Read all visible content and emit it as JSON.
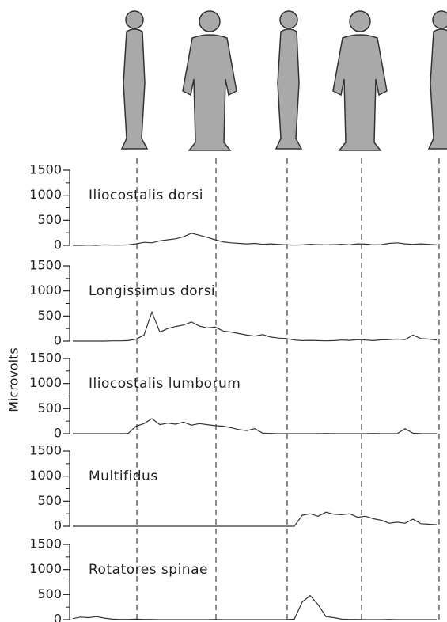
{
  "y_label": "Microvolts",
  "chart_data": [
    {
      "type": "line",
      "title": "Iliocostalis dorsi",
      "color": "#333333",
      "ylim": [
        0,
        1500
      ],
      "yticks": [
        0,
        500,
        1000,
        1500
      ],
      "values": [
        0,
        0,
        5,
        0,
        10,
        5,
        5,
        10,
        30,
        60,
        50,
        90,
        110,
        130,
        170,
        240,
        200,
        160,
        110,
        70,
        50,
        40,
        30,
        40,
        20,
        30,
        20,
        10,
        5,
        10,
        20,
        15,
        10,
        15,
        20,
        10,
        30,
        25,
        10,
        15,
        40,
        50,
        30,
        20,
        30,
        20,
        10
      ]
    },
    {
      "type": "line",
      "title": "Longissimus dorsi",
      "color": "#333333",
      "ylim": [
        0,
        1500
      ],
      "yticks": [
        0,
        500,
        1000,
        1500
      ],
      "values": [
        0,
        0,
        0,
        0,
        0,
        5,
        5,
        10,
        40,
        120,
        580,
        180,
        250,
        290,
        320,
        380,
        300,
        260,
        280,
        200,
        180,
        150,
        120,
        100,
        130,
        80,
        60,
        50,
        20,
        10,
        15,
        10,
        5,
        10,
        20,
        15,
        30,
        20,
        10,
        25,
        30,
        40,
        30,
        120,
        50,
        40,
        20
      ]
    },
    {
      "type": "line",
      "title": "Iliocostalis lumborum",
      "color": "#333333",
      "ylim": [
        0,
        1500
      ],
      "yticks": [
        0,
        500,
        1000,
        1500
      ],
      "values": [
        0,
        0,
        0,
        0,
        0,
        0,
        0,
        5,
        150,
        200,
        300,
        180,
        210,
        190,
        230,
        170,
        200,
        180,
        160,
        150,
        120,
        80,
        60,
        100,
        10,
        5,
        0,
        0,
        0,
        0,
        0,
        0,
        5,
        0,
        0,
        0,
        0,
        0,
        5,
        0,
        0,
        0,
        100,
        10,
        0,
        0,
        0
      ]
    },
    {
      "type": "line",
      "title": "Multifidus",
      "color": "#333333",
      "ylim": [
        0,
        1500
      ],
      "yticks": [
        0,
        500,
        1000,
        1500
      ],
      "values": [
        0,
        0,
        0,
        0,
        0,
        0,
        0,
        0,
        0,
        0,
        0,
        0,
        0,
        0,
        0,
        0,
        0,
        0,
        0,
        0,
        0,
        0,
        0,
        0,
        0,
        0,
        0,
        0,
        0,
        220,
        250,
        200,
        280,
        240,
        230,
        250,
        180,
        200,
        150,
        120,
        60,
        80,
        60,
        140,
        50,
        40,
        30
      ]
    },
    {
      "type": "line",
      "title": "Rotatores spinae",
      "color": "#333333",
      "ylim": [
        0,
        1500
      ],
      "yticks": [
        0,
        500,
        1000,
        1500
      ],
      "values": [
        20,
        50,
        40,
        60,
        30,
        10,
        5,
        5,
        10,
        5,
        5,
        0,
        0,
        0,
        0,
        0,
        0,
        0,
        5,
        0,
        0,
        0,
        0,
        0,
        0,
        0,
        0,
        0,
        10,
        350,
        480,
        300,
        60,
        40,
        10,
        5,
        5,
        0,
        0,
        0,
        5,
        0,
        0,
        0,
        0,
        0,
        0
      ]
    }
  ]
}
